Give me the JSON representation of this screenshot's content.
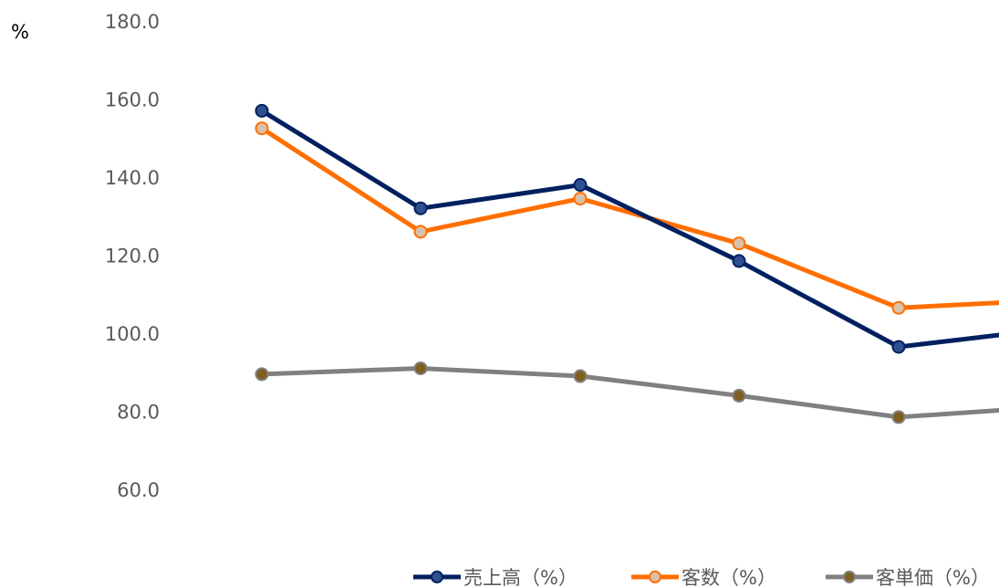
{
  "chart_data": {
    "type": "line",
    "unit_label": "%",
    "y_ticks": [
      "180.0",
      "160.0",
      "140.0",
      "120.0",
      "100.0",
      "80.0",
      "60.0"
    ],
    "ylim": [
      60,
      180
    ],
    "grid": false,
    "legend_position": "bottom",
    "series": [
      {
        "name": "売上高（%）",
        "color": "#002060",
        "marker_fill": "#2F4F8F",
        "values": [
          157.0,
          132.0,
          138.0,
          118.5,
          96.5,
          100.0
        ]
      },
      {
        "name": "客数（%）",
        "color": "#FF6F00",
        "marker_fill": "#D9C2A7",
        "values": [
          152.5,
          126.0,
          134.5,
          123.0,
          106.5,
          108.0
        ]
      },
      {
        "name": "客単価（%）",
        "color": "#808080",
        "marker_fill": "#7F5F1F",
        "values": [
          89.5,
          91.0,
          89.0,
          84.0,
          78.5,
          80.5
        ]
      }
    ]
  }
}
